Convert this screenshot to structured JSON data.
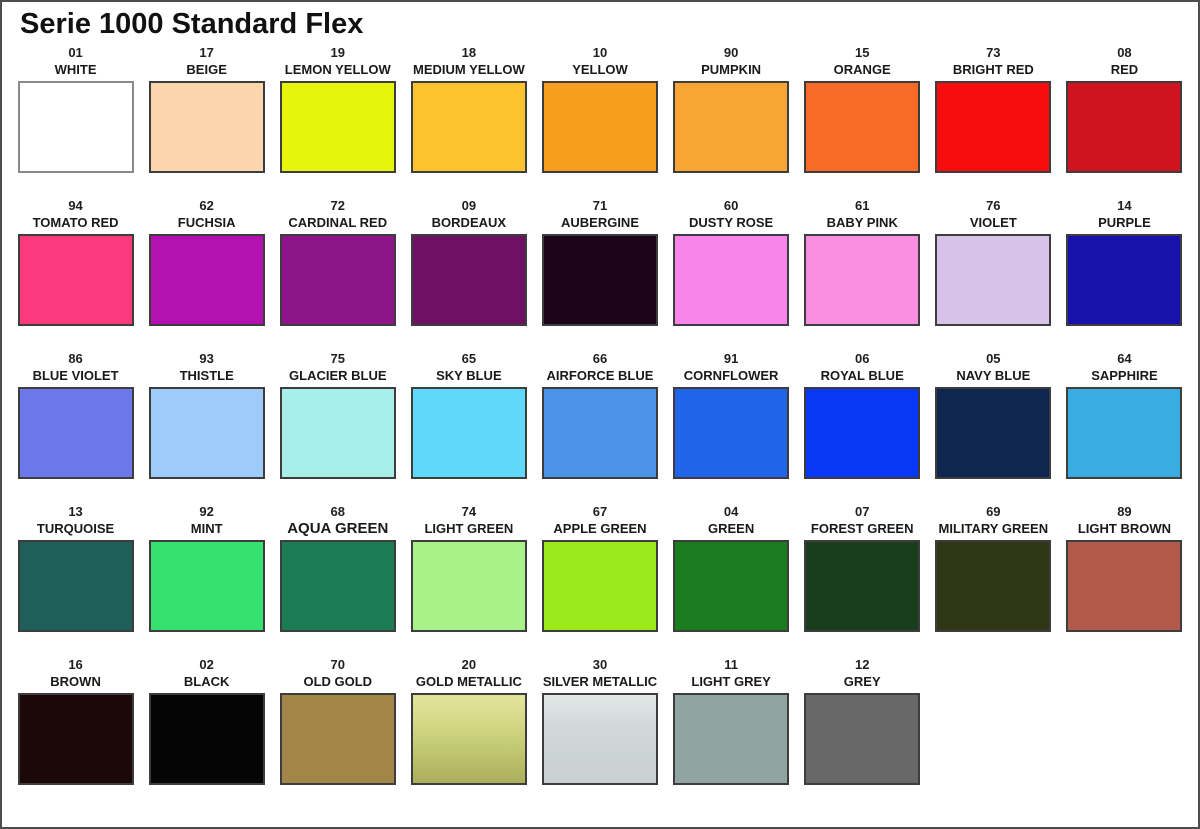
{
  "title": "Serie 1000 Standard Flex",
  "swatch_border_color": "#3d3d3d",
  "rows": [
    [
      {
        "code": "01",
        "name": "WHITE",
        "color": "#FFFFFF",
        "border": "#8a8a8a"
      },
      {
        "code": "17",
        "name": "BEIGE",
        "color": "#FBD5AE"
      },
      {
        "code": "19",
        "name": "LEMON YELLOW",
        "color": "#E7F40C"
      },
      {
        "code": "18",
        "name": "MEDIUM YELLOW",
        "color": "#FBC42E"
      },
      {
        "code": "10",
        "name": "YELLOW",
        "color": "#F89D1E"
      },
      {
        "code": "90",
        "name": "PUMPKIN",
        "color": "#F9A533"
      },
      {
        "code": "15",
        "name": "ORANGE",
        "color": "#F76B27"
      },
      {
        "code": "73",
        "name": "BRIGHT RED",
        "color": "#F70D0D"
      },
      {
        "code": "08",
        "name": "RED",
        "color": "#CF1420"
      }
    ],
    [
      {
        "code": "94",
        "name": "TOMATO RED",
        "color": "#FA3A7C"
      },
      {
        "code": "62",
        "name": "FUCHSIA",
        "color": "#B511B0"
      },
      {
        "code": "72",
        "name": "CARDINAL RED",
        "color": "#8E1489"
      },
      {
        "code": "09",
        "name": "BORDEAUX",
        "color": "#6E1063"
      },
      {
        "code": "71",
        "name": "AUBERGINE",
        "color": "#1E0419"
      },
      {
        "code": "60",
        "name": "DUSTY ROSE",
        "color": "#F785EA"
      },
      {
        "code": "61",
        "name": "BABY PINK",
        "color": "#FA8FE2"
      },
      {
        "code": "76",
        "name": "VIOLET",
        "color": "#D7C3EA"
      },
      {
        "code": "14",
        "name": "PURPLE",
        "color": "#1A13AB"
      }
    ],
    [
      {
        "code": "86",
        "name": "BLUE VIOLET",
        "color": "#6C77E9"
      },
      {
        "code": "93",
        "name": "THISTLE",
        "color": "#9ECBF9"
      },
      {
        "code": "75",
        "name": "GLACIER BLUE",
        "color": "#A9EFE9"
      },
      {
        "code": "65",
        "name": "SKY BLUE",
        "color": "#5FD9F9"
      },
      {
        "code": "66",
        "name": "AIRFORCE BLUE",
        "color": "#4B92E9"
      },
      {
        "code": "91",
        "name": "CORNFLOWER",
        "color": "#1F64E9"
      },
      {
        "code": "06",
        "name": "ROYAL BLUE",
        "color": "#0838F6"
      },
      {
        "code": "05",
        "name": "NAVY BLUE",
        "color": "#0F2650"
      },
      {
        "code": "64",
        "name": "SAPPHIRE",
        "color": "#3AACDF"
      }
    ],
    [
      {
        "code": "13",
        "name": "TURQUOISE",
        "color": "#1E6059"
      },
      {
        "code": "92",
        "name": "MINT",
        "color": "#36E170"
      },
      {
        "code": "68",
        "name": "AQUA GREEN",
        "color": "#1B7B53",
        "large": true
      },
      {
        "code": "74",
        "name": "LIGHT GREEN",
        "color": "#A9F189"
      },
      {
        "code": "67",
        "name": "APPLE GREEN",
        "color": "#9BE91B"
      },
      {
        "code": "04",
        "name": "GREEN",
        "color": "#1B7B1F"
      },
      {
        "code": "07",
        "name": "FOREST GREEN",
        "color": "#193E1D"
      },
      {
        "code": "69",
        "name": "MILITARY GREEN",
        "color": "#2E3615"
      },
      {
        "code": "89",
        "name": "LIGHT BROWN",
        "color": "#B1594B"
      }
    ],
    [
      {
        "code": "16",
        "name": "BROWN",
        "color": "#1B0909"
      },
      {
        "code": "02",
        "name": "BLACK",
        "color": "#050505"
      },
      {
        "code": "70",
        "name": "OLD GOLD",
        "color": "#A18549"
      },
      {
        "code": "20",
        "name": "GOLD METALLIC",
        "gradient": [
          "#E2E59B",
          "#D3D886",
          "#BFC46F",
          "#ABAE5C"
        ]
      },
      {
        "code": "30",
        "name": "SILVER METALLIC",
        "gradient": [
          "#E3E8E7",
          "#D2DAD9",
          "#CBD4D3",
          "#C8D1D0"
        ]
      },
      {
        "code": "11",
        "name": "LIGHT GREY",
        "color": "#90A4A1"
      },
      {
        "code": "12",
        "name": "GREY",
        "color": "#686868"
      }
    ]
  ]
}
